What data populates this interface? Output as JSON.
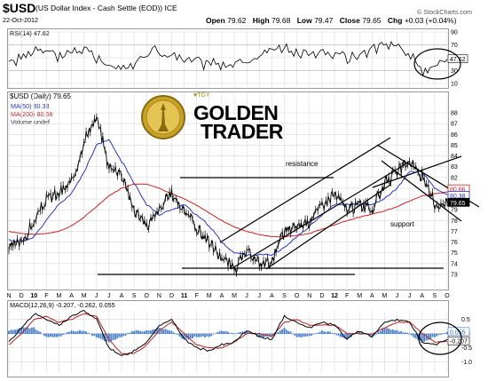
{
  "header": {
    "symbol": "$USD",
    "description": "(US Dollar Index - Cash Settle (EOD)) ICE",
    "date": "22-Oct-2012",
    "open_label": "Open",
    "open": "79.62",
    "high_label": "High",
    "high": "79.68",
    "low_label": "Low",
    "low": "79.47",
    "close_label": "Close",
    "close": "79.65",
    "chg_label": "Chg",
    "chg": "+0.03 (+0.04%)",
    "brand": "© StockCharts.com"
  },
  "logo": {
    "small": "♥TGY",
    "line1": "GOLDEN",
    "line2": "TRADER"
  },
  "colors": {
    "price": "#000000",
    "ma50": "#2b35c4",
    "ma200": "#d02020",
    "macd": "#000000",
    "signal": "#c02020",
    "histogram": "#2f6fc0",
    "grid": "#d8d8d8"
  },
  "chart_data": [
    {
      "type": "line",
      "title": "RSI(14) 47.62",
      "series": [
        {
          "name": "RSI(14)",
          "x": [
            "2009-11",
            "2010-01",
            "2010-03",
            "2010-05",
            "2010-07",
            "2010-09",
            "2010-11",
            "2011-01",
            "2011-03",
            "2011-05",
            "2011-07",
            "2011-09",
            "2011-11",
            "2012-01",
            "2012-03",
            "2012-05",
            "2012-07",
            "2012-08",
            "2012-10"
          ],
          "values": [
            42,
            60,
            52,
            65,
            40,
            38,
            62,
            48,
            42,
            35,
            45,
            66,
            55,
            58,
            48,
            66,
            70,
            30,
            47.62
          ]
        }
      ],
      "ylim": [
        10,
        90
      ],
      "yticks": [
        90,
        70,
        50,
        30,
        10
      ],
      "last_value_label": "47.62"
    },
    {
      "type": "line",
      "title": "$USD (Daily) 79.65",
      "legend": [
        "MA(50) 80.38",
        "MA(200) 80.66",
        "Volume undef"
      ],
      "x": [
        "2009-11",
        "2009-12",
        "2010-01",
        "2010-02",
        "2010-03",
        "2010-04",
        "2010-05",
        "2010-06",
        "2010-07",
        "2010-08",
        "2010-09",
        "2010-10",
        "2010-11",
        "2010-12",
        "2011-01",
        "2011-02",
        "2011-03",
        "2011-04",
        "2011-05",
        "2011-06",
        "2011-07",
        "2011-08",
        "2011-09",
        "2011-10",
        "2011-11",
        "2011-12",
        "2012-01",
        "2012-02",
        "2012-03",
        "2012-04",
        "2012-05",
        "2012-06",
        "2012-07",
        "2012-08",
        "2012-09",
        "2012-10"
      ],
      "series": [
        {
          "name": "$USD (Daily)",
          "values": [
            75.5,
            76.0,
            77.8,
            80.0,
            80.5,
            81.5,
            85.5,
            87.5,
            83.0,
            82.5,
            79.0,
            77.5,
            79.0,
            80.5,
            79.0,
            77.3,
            76.0,
            74.5,
            73.5,
            75.0,
            74.0,
            74.2,
            77.0,
            77.5,
            78.0,
            79.5,
            80.5,
            79.0,
            79.5,
            79.0,
            81.5,
            82.5,
            83.5,
            82.0,
            79.5,
            79.65
          ]
        },
        {
          "name": "MA(50)",
          "values": [
            76.2,
            76.0,
            76.5,
            78.0,
            79.5,
            80.5,
            82.5,
            85.0,
            85.5,
            83.5,
            81.5,
            79.5,
            78.5,
            79.0,
            79.5,
            78.5,
            77.5,
            76.0,
            75.0,
            74.8,
            74.8,
            74.8,
            75.5,
            76.5,
            77.5,
            78.5,
            79.5,
            79.5,
            79.5,
            79.5,
            80.0,
            81.0,
            82.5,
            82.5,
            81.0,
            80.38
          ]
        },
        {
          "name": "MA(200)",
          "values": [
            77.0,
            76.8,
            76.7,
            76.8,
            77.0,
            77.5,
            78.3,
            79.3,
            80.3,
            81.0,
            81.4,
            81.4,
            81.0,
            80.5,
            80.0,
            79.4,
            78.7,
            78.0,
            77.4,
            77.0,
            76.7,
            76.5,
            76.5,
            76.6,
            76.8,
            77.2,
            77.6,
            78.0,
            78.3,
            78.6,
            78.9,
            79.3,
            79.8,
            80.3,
            80.5,
            80.66
          ]
        }
      ],
      "ylim": [
        72,
        89
      ],
      "yticks": [
        88,
        87,
        86,
        85,
        84,
        83,
        82,
        81,
        80,
        79,
        78,
        77,
        76,
        75,
        74,
        73
      ],
      "annotations": [
        "resistance",
        "support"
      ],
      "price_tags": [
        "80.66",
        "80.38",
        "79.65"
      ],
      "x_tick_labels": [
        "N",
        "D",
        "10",
        "F",
        "M",
        "A",
        "M",
        "J",
        "J",
        "A",
        "S",
        "O",
        "N",
        "D",
        "11",
        "F",
        "M",
        "A",
        "M",
        "J",
        "J",
        "A",
        "S",
        "O",
        "N",
        "D",
        "12",
        "F",
        "M",
        "A",
        "M",
        "J",
        "J",
        "A",
        "S",
        "O"
      ]
    },
    {
      "type": "line",
      "title": "MACD(12,26,9) -0.207, -0.262, 0.055",
      "series": [
        {
          "name": "MACD",
          "values": [
            -0.3,
            0.2,
            0.7,
            0.5,
            0.3,
            0.6,
            0.8,
            0.5,
            -0.5,
            -0.8,
            -0.6,
            -0.3,
            0.3,
            0.5,
            -0.2,
            -0.5,
            -0.6,
            -0.4,
            -0.3,
            0.1,
            -0.1,
            -0.2,
            0.6,
            0.4,
            0.2,
            0.4,
            0.3,
            -0.2,
            0.1,
            -0.1,
            0.4,
            0.5,
            0.4,
            -0.3,
            -0.4,
            -0.207
          ]
        },
        {
          "name": "Signal",
          "values": [
            -0.4,
            0.0,
            0.5,
            0.6,
            0.4,
            0.5,
            0.7,
            0.6,
            -0.2,
            -0.7,
            -0.7,
            -0.4,
            0.1,
            0.4,
            0.0,
            -0.4,
            -0.5,
            -0.5,
            -0.3,
            0.0,
            0.0,
            -0.1,
            0.4,
            0.5,
            0.3,
            0.3,
            0.3,
            0.0,
            0.0,
            0.0,
            0.2,
            0.4,
            0.4,
            0.0,
            -0.3,
            -0.262
          ]
        },
        {
          "name": "Histogram",
          "values": [
            0.1,
            0.2,
            0.2,
            -0.1,
            -0.1,
            0.1,
            0.1,
            -0.1,
            -0.3,
            -0.1,
            0.1,
            0.1,
            0.2,
            0.1,
            -0.2,
            -0.1,
            -0.1,
            0.1,
            0.0,
            0.1,
            -0.1,
            -0.1,
            0.2,
            -0.1,
            -0.1,
            0.1,
            0.0,
            -0.2,
            0.1,
            -0.1,
            0.2,
            0.1,
            0.0,
            -0.3,
            -0.1,
            0.055
          ]
        }
      ],
      "ylim": [
        -1.2,
        0.8
      ],
      "yticks": [
        0.5,
        0.0,
        -0.5,
        -1.0
      ],
      "tags": [
        "0.055",
        "-0.207"
      ]
    }
  ]
}
